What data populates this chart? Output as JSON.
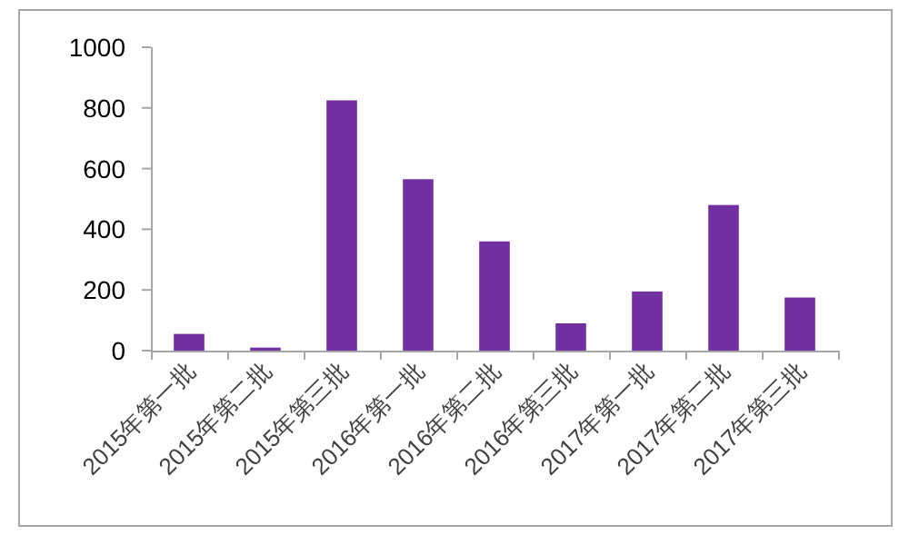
{
  "chart_data": {
    "type": "bar",
    "categories": [
      "2015年第一批",
      "2015年第二批",
      "2015年第三批",
      "2016年第一批",
      "2016年第二批",
      "2016年第三批",
      "2017年第一批",
      "2017年第二批",
      "2017年第三批"
    ],
    "values": [
      55,
      10,
      825,
      565,
      360,
      90,
      195,
      480,
      175
    ],
    "color": "#7030a0",
    "ylim": [
      0,
      1000
    ],
    "yticks": [
      0,
      200,
      400,
      600,
      800,
      1000
    ]
  }
}
